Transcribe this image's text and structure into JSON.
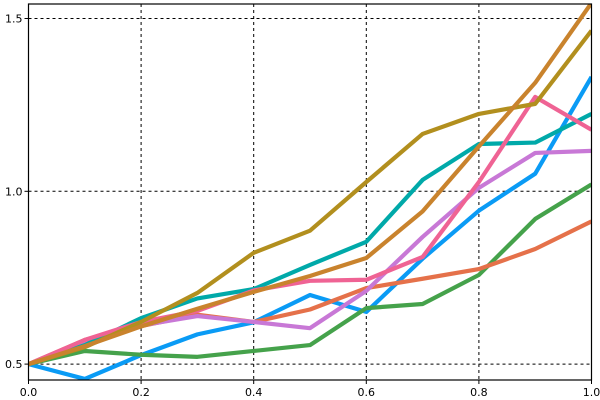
{
  "chart_data": {
    "type": "line",
    "title": "",
    "xlabel": "",
    "ylabel": "",
    "xlim": [
      0,
      1.0
    ],
    "ylim": [
      0.454,
      1.542
    ],
    "grid": true,
    "grid_style": "dashed",
    "xticks": [
      "0.0",
      "0.2",
      "0.4",
      "0.6",
      "0.8",
      "1.0"
    ],
    "xtick_values": [
      0,
      0.2,
      0.4,
      0.6,
      0.8,
      1.0
    ],
    "yticks": [
      "0.5",
      "1.0",
      "1.5"
    ],
    "ytick_values": [
      0.5,
      1.0,
      1.5
    ],
    "x": [
      0,
      0.1,
      0.2,
      0.3,
      0.4,
      0.5,
      0.6,
      0.7,
      0.8,
      0.9,
      1.0
    ],
    "series": [
      {
        "color": "#0a9bf5",
        "values": [
          0.5,
          0.457,
          0.526,
          0.586,
          0.621,
          0.7,
          0.651,
          0.805,
          0.944,
          1.051,
          1.331
        ]
      },
      {
        "color": "#45a24b",
        "values": [
          0.5,
          0.538,
          0.527,
          0.521,
          0.538,
          0.555,
          0.662,
          0.674,
          0.758,
          0.92,
          1.02
        ]
      },
      {
        "color": "#e5714a",
        "values": [
          0.5,
          0.57,
          0.61,
          0.643,
          0.622,
          0.658,
          0.72,
          0.747,
          0.775,
          0.833,
          0.913
        ]
      },
      {
        "color": "#c878d6",
        "values": [
          0.5,
          0.557,
          0.612,
          0.639,
          0.622,
          0.604,
          0.712,
          0.868,
          1.01,
          1.111,
          1.117
        ]
      },
      {
        "color": "#00a9a9",
        "values": [
          0.5,
          0.555,
          0.633,
          0.69,
          0.717,
          0.787,
          0.854,
          1.033,
          1.137,
          1.141,
          1.224
        ]
      },
      {
        "color": "#ef6394",
        "values": [
          0.5,
          0.57,
          0.622,
          0.654,
          0.713,
          0.741,
          0.744,
          0.81,
          1.027,
          1.273,
          1.178
        ]
      },
      {
        "color": "#b28f1e",
        "values": [
          0.5,
          0.549,
          0.622,
          0.706,
          0.822,
          0.886,
          1.027,
          1.166,
          1.224,
          1.253,
          1.465
        ]
      },
      {
        "color": "#c9832d",
        "values": [
          0.5,
          0.552,
          0.609,
          0.66,
          0.709,
          0.755,
          0.807,
          0.942,
          1.13,
          1.314,
          1.545
        ]
      }
    ]
  }
}
